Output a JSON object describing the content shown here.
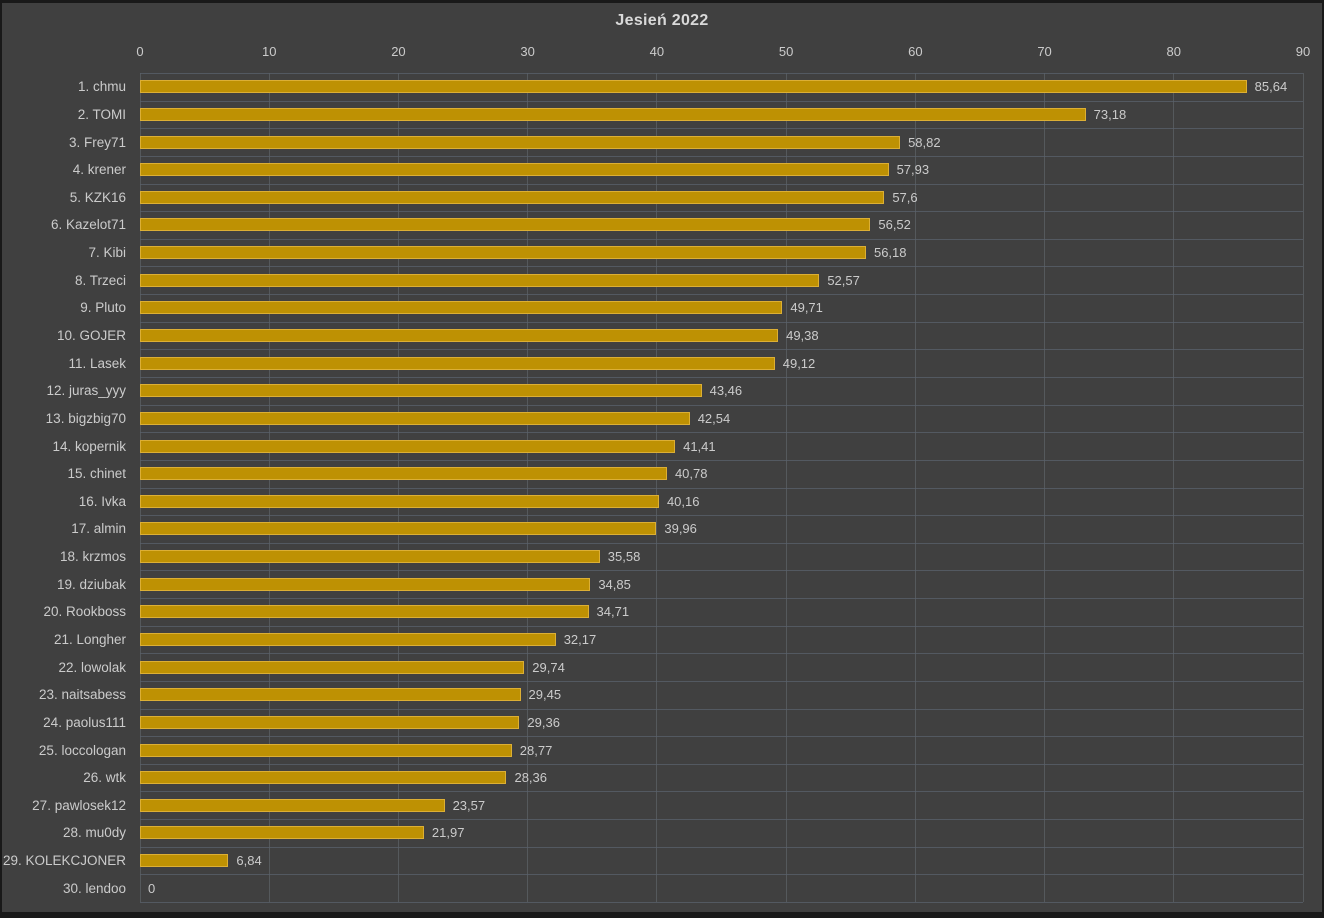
{
  "chart_data": {
    "type": "bar",
    "orientation": "horizontal",
    "title": "Jesień 2022",
    "xlabel": "",
    "ylabel": "",
    "xlim": [
      0,
      90
    ],
    "x_ticks": [
      0,
      10,
      20,
      30,
      40,
      50,
      60,
      70,
      80,
      90
    ],
    "grid": "on",
    "legend": "none",
    "categories": [
      "1. chmu",
      "2. TOMI",
      "3. Frey71",
      "4. krener",
      "5. KZK16",
      "6. Kazelot71",
      "7. Kibi",
      "8. Trzeci",
      "9. Pluto",
      "10. GOJER",
      "11. Lasek",
      "12. juras_yyy",
      "13. bigzbig70",
      "14. kopernik",
      "15. chinet",
      "16. Ivka",
      "17. almin",
      "18. krzmos",
      "19. dziubak",
      "20. Rookboss",
      "21. Longher",
      "22. lowolak",
      "23. naitsabess",
      "24. paolus111",
      "25. loccologan",
      "26. wtk",
      "27. pawlosek12",
      "28. mu0dy",
      "29. KOLEKCJONER",
      "30. lendoo"
    ],
    "values": [
      85.64,
      73.18,
      58.82,
      57.93,
      57.6,
      56.52,
      56.18,
      52.57,
      49.71,
      49.38,
      49.12,
      43.46,
      42.54,
      41.41,
      40.78,
      40.16,
      39.96,
      35.58,
      34.85,
      34.71,
      32.17,
      29.74,
      29.45,
      29.36,
      28.77,
      28.36,
      23.57,
      21.97,
      6.84,
      0
    ],
    "value_labels": [
      "85,64",
      "73,18",
      "58,82",
      "57,93",
      "57,6",
      "56,52",
      "56,18",
      "52,57",
      "49,71",
      "49,38",
      "49,12",
      "43,46",
      "42,54",
      "41,41",
      "40,78",
      "40,16",
      "39,96",
      "35,58",
      "34,85",
      "34,71",
      "32,17",
      "29,74",
      "29,45",
      "29,36",
      "28,77",
      "28,36",
      "23,57",
      "21,97",
      "6,84",
      "0"
    ],
    "colors": {
      "background": "#404040",
      "frame": "#191919",
      "bar_fill": "#BE9103",
      "bar_border": "#DCAF35",
      "grid_horizontal": "#5A626C",
      "grid_vertical": "#55595C",
      "text": "#CBCBCB",
      "title_text": "#D9D9D9"
    }
  }
}
